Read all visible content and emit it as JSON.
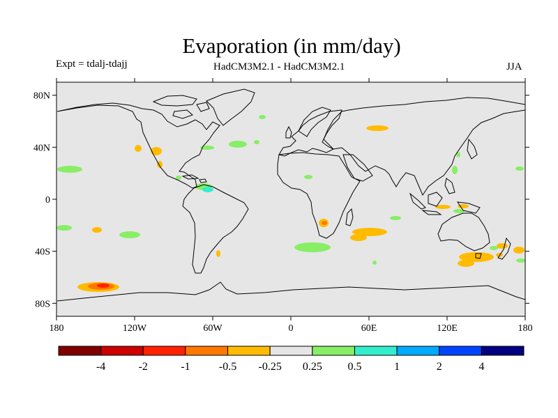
{
  "title": "Evaporation (in mm/day)",
  "left_string": "Expt = tdalj-tdajj",
  "center_string": "HadCM3M2.1 - HadCM3M2.1",
  "right_string": "JJA",
  "map": {
    "projection": "cylindrical-equidistant",
    "lon_range": [
      -180,
      180
    ],
    "lat_range": [
      -90,
      90
    ],
    "background_color": "#e6e6e6",
    "lat_ticks": [
      {
        "lat": 80,
        "label": "80N"
      },
      {
        "lat": 40,
        "label": "40N"
      },
      {
        "lat": 0,
        "label": "0"
      },
      {
        "lat": -40,
        "label": "40S"
      },
      {
        "lat": -80,
        "label": "80S"
      }
    ],
    "lon_ticks": [
      {
        "lon": -180,
        "label": "180"
      },
      {
        "lon": -120,
        "label": "120W"
      },
      {
        "lon": -60,
        "label": "60W"
      },
      {
        "lon": 0,
        "label": "0"
      },
      {
        "lon": 60,
        "label": "60E"
      },
      {
        "lon": 120,
        "label": "120E"
      },
      {
        "lon": 180,
        "label": "180"
      }
    ]
  },
  "colorbar": {
    "colors": [
      "#800000",
      "#cc0000",
      "#ff2200",
      "#ff7700",
      "#ffbb00",
      "#e6e6e6",
      "#88ee66",
      "#33eecc",
      "#00aaff",
      "#0044ff",
      "#000080"
    ],
    "labels": [
      "-4",
      "-2",
      "-1",
      "-0.5",
      "-0.25",
      "0.25",
      "0.5",
      "1",
      "2",
      "4"
    ]
  },
  "chart_data": {
    "type": "heatmap",
    "title": "Evaporation (in mm/day)",
    "units": "mm/day",
    "levels": [
      -4,
      -2,
      -1,
      -0.5,
      -0.25,
      0.25,
      0.5,
      1,
      2,
      4
    ],
    "anomaly_patches": [
      {
        "name": "north-pacific-east-evap-increase",
        "lon": -170,
        "lat": 22,
        "value": 0.5
      },
      {
        "name": "central-pacific-south-evap-increase",
        "lon": -125,
        "lat": -27,
        "value": 0.5
      },
      {
        "name": "tropical-pacific-west-evap-increase",
        "lon": -175,
        "lat": -22,
        "value": 0.5
      },
      {
        "name": "gulf-of-mexico-evap-increase",
        "lon": -85,
        "lat": 26,
        "value": 0.5
      },
      {
        "name": "caribbean-evap-increase",
        "lon": -65,
        "lat": 10,
        "value": 1
      },
      {
        "name": "north-atlantic-evap-increase",
        "lon": -45,
        "lat": 39,
        "value": 0.5
      },
      {
        "name": "north-atlantic-east-evap-increase",
        "lon": -20,
        "lat": 40,
        "value": 0.5
      },
      {
        "name": "south-atlantic-evap-increase",
        "lon": 5,
        "lat": -37,
        "value": 0.5
      },
      {
        "name": "indian-ocean-west-evap-increase",
        "lon": 82,
        "lat": -14,
        "value": 0.5
      },
      {
        "name": "south-pacific-east-evap-increase",
        "lon": 180,
        "lat": -37,
        "value": 0.5
      },
      {
        "name": "east-pacific-mexico-evap-decrease",
        "lon": -115,
        "lat": 37,
        "value": -0.25
      },
      {
        "name": "south-pacific-evap-decrease",
        "lon": -150,
        "lat": -25,
        "value": -0.25
      },
      {
        "name": "southern-ocean-pacific-evap-decrease",
        "lon": -145,
        "lat": -68,
        "value": -1
      },
      {
        "name": "central-asia-evap-decrease",
        "lon": 62,
        "lat": 51,
        "value": -0.25
      },
      {
        "name": "southern-africa-evap-decrease",
        "lon": 27,
        "lat": -19,
        "value": -0.5
      },
      {
        "name": "indian-ocean-south-evap-decrease",
        "lon": 58,
        "lat": -27,
        "value": -0.25
      },
      {
        "name": "australia-south-evap-decrease",
        "lon": 145,
        "lat": -42,
        "value": -0.5
      },
      {
        "name": "indonesia-evap-decrease",
        "lon": 125,
        "lat": -6,
        "value": -0.25
      },
      {
        "name": "new-zealand-evap-decrease",
        "lon": 160,
        "lat": -38,
        "value": -0.25
      }
    ]
  }
}
